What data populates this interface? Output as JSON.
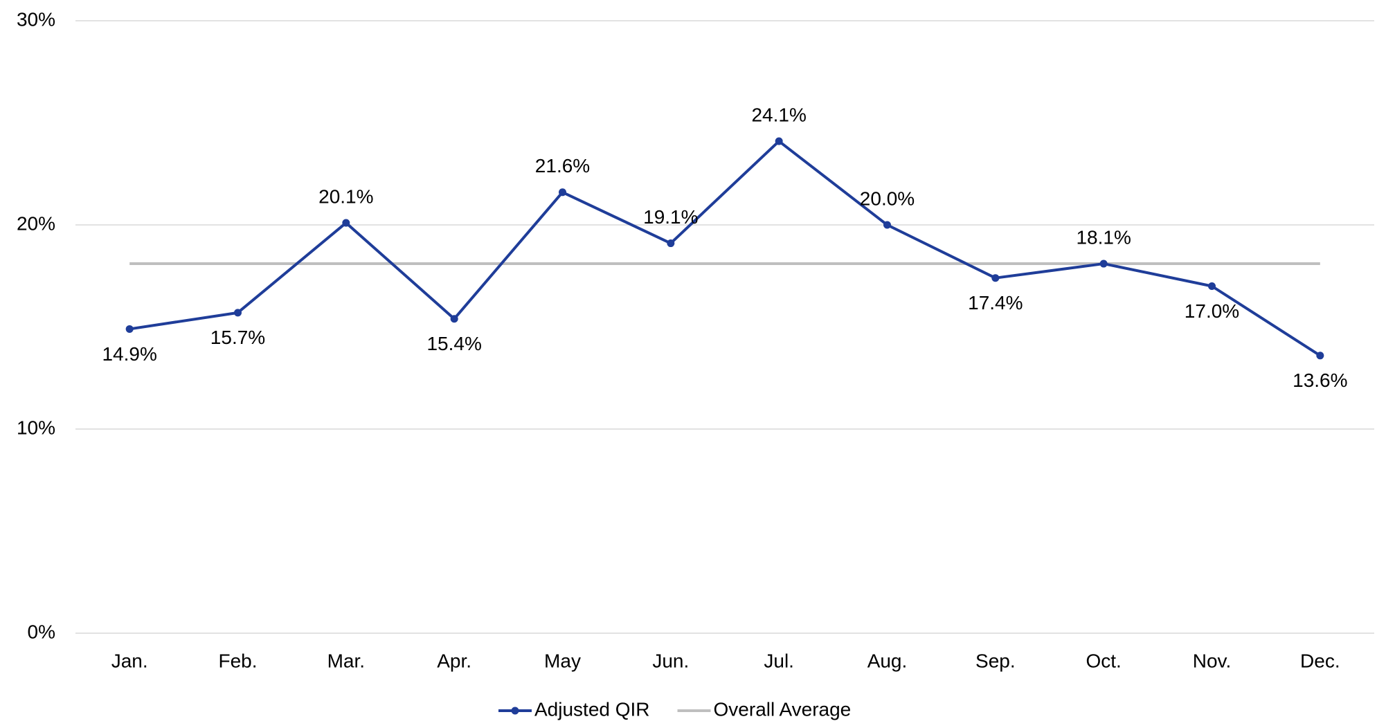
{
  "chart_data": {
    "type": "line",
    "categories": [
      "Jan.",
      "Feb.",
      "Mar.",
      "Apr.",
      "May",
      "Jun.",
      "Jul.",
      "Aug.",
      "Sep.",
      "Oct.",
      "Nov.",
      "Dec."
    ],
    "series": [
      {
        "name": "Adjusted QIR",
        "color": "#1f3d99",
        "values": [
          14.9,
          15.7,
          20.1,
          15.4,
          21.6,
          19.1,
          24.1,
          20.0,
          17.4,
          18.1,
          17.0,
          13.6
        ],
        "value_labels": [
          "14.9%",
          "15.7%",
          "20.1%",
          "15.4%",
          "21.6%",
          "19.1%",
          "24.1%",
          "20.0%",
          "17.4%",
          "18.1%",
          "17.0%",
          "13.6%"
        ]
      },
      {
        "name": "Overall Average",
        "color": "#bfbfbf",
        "values": [
          18.1,
          18.1,
          18.1,
          18.1,
          18.1,
          18.1,
          18.1,
          18.1,
          18.1,
          18.1,
          18.1,
          18.1
        ]
      }
    ],
    "ylim": [
      0,
      30
    ],
    "yticks": [
      {
        "value": 0,
        "label": "0%"
      },
      {
        "value": 10,
        "label": "10%"
      },
      {
        "value": 20,
        "label": "20%"
      },
      {
        "value": 30,
        "label": "30%"
      }
    ],
    "grid": true,
    "legend": "bottom"
  }
}
